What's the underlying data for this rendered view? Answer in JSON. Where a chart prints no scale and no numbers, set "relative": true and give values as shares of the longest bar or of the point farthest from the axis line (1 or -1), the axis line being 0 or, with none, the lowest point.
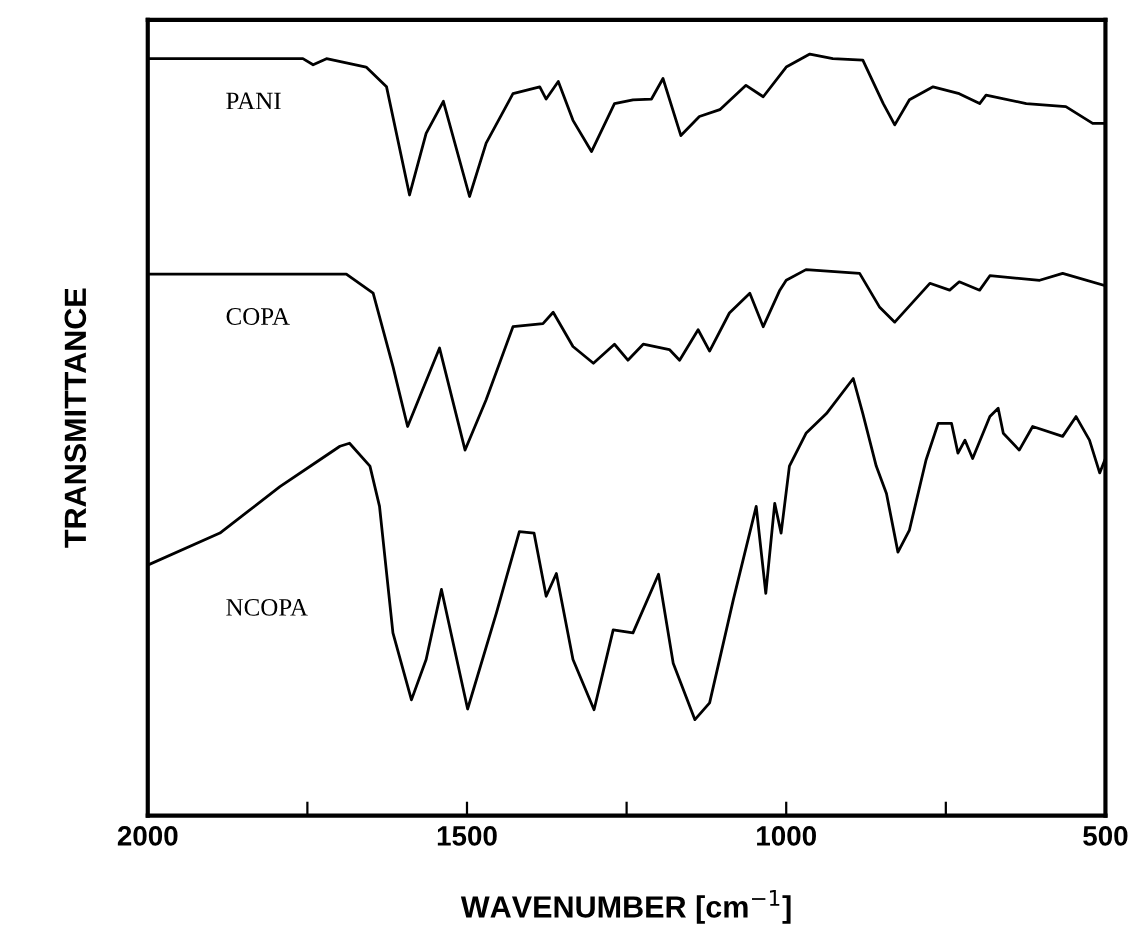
{
  "chart_data": {
    "type": "line",
    "relative": true,
    "xlabel": "WAVENUMBER [cm$^{−1}$]",
    "ylabel": "TRANSMITTANCE",
    "xlim": [
      2000,
      500
    ],
    "xticks": [
      2000,
      {
        "value": 1750,
        "label": null
      },
      1500,
      {
        "value": 1250,
        "label": null
      },
      1000,
      {
        "value": 750,
        "label": null
      },
      500
    ],
    "tick_labels": "x",
    "grid": false,
    "legend": false,
    "marker": "none",
    "line_style": "solid",
    "series": [
      {
        "name": "PANI",
        "color": "#000000",
        "x": [
          2000,
          1757,
          1741,
          1720,
          1658,
          1626,
          1590,
          1564,
          1537,
          1496,
          1470,
          1428,
          1386,
          1376,
          1357,
          1334,
          1305,
          1269,
          1240,
          1211,
          1193,
          1165,
          1136,
          1104,
          1063,
          1036,
          1000,
          963,
          927,
          880,
          848,
          830,
          807,
          770,
          729,
          697,
          687,
          624,
          562,
          520,
          501
        ],
        "values": [
          0.994,
          0.994,
          0.986,
          0.994,
          0.983,
          0.957,
          0.815,
          0.896,
          0.938,
          0.813,
          0.883,
          0.948,
          0.957,
          0.941,
          0.964,
          0.913,
          0.872,
          0.935,
          0.94,
          0.941,
          0.968,
          0.893,
          0.918,
          0.927,
          0.959,
          0.944,
          0.983,
          1.0,
          0.994,
          0.992,
          0.935,
          0.907,
          0.94,
          0.957,
          0.948,
          0.935,
          0.946,
          0.935,
          0.931,
          0.909,
          0.909
        ]
      },
      {
        "name": "COPA",
        "color": "#000000",
        "x": [
          2000,
          1689,
          1647,
          1616,
          1593,
          1543,
          1503,
          1470,
          1428,
          1381,
          1365,
          1334,
          1302,
          1269,
          1248,
          1224,
          1183,
          1167,
          1138,
          1120,
          1089,
          1057,
          1036,
          1010,
          1000,
          969,
          885,
          854,
          830,
          775,
          744,
          729,
          697,
          681,
          603,
          567,
          501
        ],
        "values": [
          0.711,
          0.711,
          0.686,
          0.59,
          0.511,
          0.614,
          0.48,
          0.546,
          0.642,
          0.646,
          0.661,
          0.616,
          0.594,
          0.619,
          0.598,
          0.619,
          0.612,
          0.598,
          0.638,
          0.61,
          0.66,
          0.686,
          0.642,
          0.69,
          0.703,
          0.717,
          0.712,
          0.668,
          0.648,
          0.699,
          0.69,
          0.701,
          0.69,
          0.709,
          0.703,
          0.712,
          0.696
        ]
      },
      {
        "name": "NCOPA",
        "color": "#000000",
        "x": [
          2000,
          1887,
          1793,
          1731,
          1699,
          1684,
          1652,
          1637,
          1616,
          1587,
          1564,
          1540,
          1499,
          1454,
          1418,
          1395,
          1376,
          1360,
          1334,
          1301,
          1271,
          1240,
          1200,
          1177,
          1143,
          1120,
          1083,
          1047,
          1032,
          1018,
          1008,
          995,
          969,
          937,
          895,
          880,
          859,
          843,
          825,
          807,
          781,
          762,
          741,
          731,
          720,
          708,
          681,
          668,
          660,
          635,
          614,
          567,
          546,
          525,
          509,
          501
        ],
        "values": [
          0.329,
          0.371,
          0.432,
          0.467,
          0.485,
          0.489,
          0.459,
          0.406,
          0.24,
          0.152,
          0.205,
          0.297,
          0.14,
          0.266,
          0.373,
          0.371,
          0.288,
          0.318,
          0.205,
          0.139,
          0.244,
          0.24,
          0.317,
          0.2,
          0.126,
          0.148,
          0.283,
          0.406,
          0.292,
          0.41,
          0.371,
          0.459,
          0.502,
          0.528,
          0.574,
          0.528,
          0.459,
          0.423,
          0.346,
          0.375,
          0.467,
          0.515,
          0.515,
          0.476,
          0.493,
          0.469,
          0.524,
          0.535,
          0.502,
          0.48,
          0.511,
          0.498,
          0.524,
          0.493,
          0.45,
          0.467
        ]
      }
    ]
  }
}
